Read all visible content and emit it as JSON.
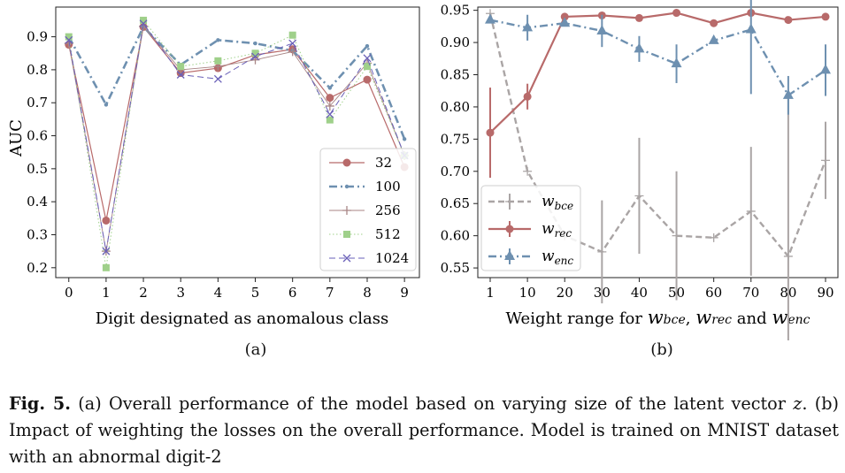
{
  "chart_data": [
    {
      "type": "line",
      "panel": "(a)",
      "xlabel": "Digit designated as anomalous class",
      "ylabel": "AUC",
      "x": [
        0,
        1,
        2,
        3,
        4,
        5,
        6,
        7,
        8,
        9
      ],
      "xlim": [
        -0.35,
        9.4
      ],
      "ylim": [
        0.17,
        0.99
      ],
      "yticks": [
        0.2,
        0.3,
        0.4,
        0.5,
        0.6,
        0.7,
        0.8,
        0.9
      ],
      "ytick_labels": [
        "0.2",
        "0.3",
        "0.4",
        "0.5",
        "0.6",
        "0.7",
        "0.8",
        "0.9"
      ],
      "xtick_labels": [
        "0",
        "1",
        "2",
        "3",
        "4",
        "5",
        "6",
        "7",
        "8",
        "9"
      ],
      "legend_position": "lower-right",
      "series": [
        {
          "name": "32",
          "values": [
            0.876,
            0.343,
            0.93,
            0.79,
            0.805,
            0.845,
            0.862,
            0.715,
            0.77,
            0.505
          ],
          "color": "#b86a6a",
          "marker": "circle",
          "dash": "solid",
          "width": 1.2
        },
        {
          "name": "100",
          "values": [
            0.9,
            0.694,
            0.93,
            0.815,
            0.89,
            0.88,
            0.858,
            0.745,
            0.872,
            0.59
          ],
          "color": "#6e90b0",
          "marker": "dot",
          "dash": "dashdot",
          "width": 2.6
        },
        {
          "name": "256",
          "values": [
            0.88,
            0.25,
            0.932,
            0.8,
            0.81,
            0.83,
            0.855,
            0.69,
            0.82,
            0.54
          ],
          "color": "#a88585",
          "marker": "plus",
          "dash": "solid",
          "width": 0.9
        },
        {
          "name": "512",
          "values": [
            0.9,
            0.2,
            0.95,
            0.81,
            0.827,
            0.85,
            0.905,
            0.648,
            0.81,
            0.54
          ],
          "color": "#9fd08a",
          "marker": "square",
          "dash": "dotted",
          "width": 1.0
        },
        {
          "name": "1024",
          "values": [
            0.89,
            0.25,
            0.94,
            0.785,
            0.772,
            0.84,
            0.88,
            0.665,
            0.835,
            0.54
          ],
          "color": "#6a60b8",
          "marker": "x",
          "dash": "dashed",
          "width": 1.0
        }
      ]
    },
    {
      "type": "line",
      "panel": "(b)",
      "xlabel_parts": [
        "Weight range for ",
        "w",
        "bce",
        ", ",
        "w",
        "rec",
        " and ",
        "w",
        "enc"
      ],
      "x": [
        1,
        10,
        20,
        30,
        40,
        50,
        60,
        70,
        80,
        90
      ],
      "xtick_labels": [
        "1",
        "10",
        "20",
        "30",
        "40",
        "50",
        "60",
        "70",
        "80",
        "90"
      ],
      "ylim": [
        0.535,
        0.955
      ],
      "yticks": [
        0.55,
        0.6,
        0.65,
        0.7,
        0.75,
        0.8,
        0.85,
        0.9,
        0.95
      ],
      "ytick_labels": [
        "0.55",
        "0.60",
        "0.65",
        "0.70",
        "0.75",
        "0.80",
        "0.85",
        "0.90",
        "0.95"
      ],
      "legend_position": "lower-left",
      "series": [
        {
          "name": "w",
          "sub": "bce",
          "values": [
            0.945,
            0.7,
            0.6,
            0.575,
            0.662,
            0.6,
            0.597,
            0.638,
            0.568,
            0.717
          ],
          "err": [
            0.0,
            0.0,
            0.0,
            0.08,
            0.09,
            0.1,
            0.0,
            0.1,
            0.25,
            0.06
          ],
          "color": "#aaa5a5",
          "marker": "plus",
          "dash": "dashed",
          "width": 2.4
        },
        {
          "name": "w",
          "sub": "rec",
          "values": [
            0.76,
            0.816,
            0.94,
            0.942,
            0.938,
            0.946,
            0.93,
            0.946,
            0.935,
            0.94
          ],
          "err": [
            0.07,
            0.02,
            0.0,
            0.0,
            0.0,
            0.0,
            0.0,
            0.0,
            0.0,
            0.0
          ],
          "color": "#b86a6a",
          "marker": "circle",
          "dash": "solid",
          "width": 2.2
        },
        {
          "name": "w",
          "sub": "enc",
          "values": [
            0.935,
            0.923,
            0.93,
            0.918,
            0.89,
            0.867,
            0.903,
            0.92,
            0.818,
            0.857
          ],
          "err": [
            0.0,
            0.02,
            0.0,
            0.025,
            0.02,
            0.03,
            0.0,
            0.1,
            0.03,
            0.04
          ],
          "color": "#6e90b0",
          "marker": "triangle",
          "dash": "dashdot",
          "width": 2.4
        }
      ]
    }
  ],
  "panel_labels": {
    "a": "(a)",
    "b": "(b)"
  },
  "caption": {
    "label": "Fig. 5.",
    "text_1": " (a) Overall performance of the model based on varying size of the latent vector ",
    "var": "z",
    "text_2": ". (b) Impact of weighting the losses on the overall performance. Model is trained on MNIST dataset with an abnormal digit-2"
  }
}
